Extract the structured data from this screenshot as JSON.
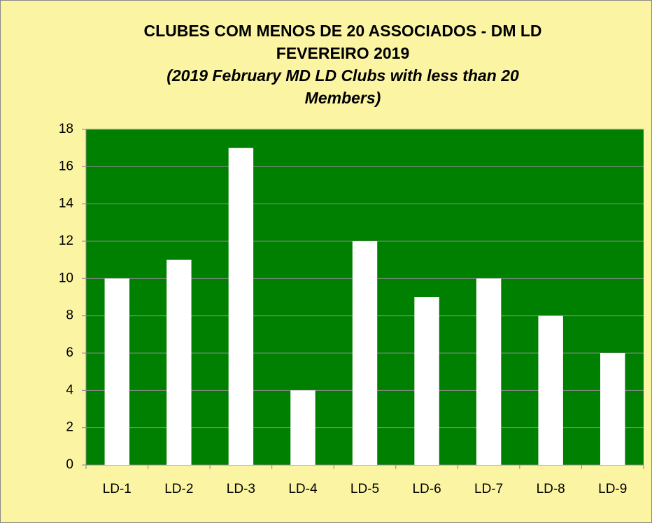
{
  "chart_data": {
    "type": "bar",
    "title": [
      "CLUBES COM MENOS DE 20 ASSOCIADOS - DM LD",
      "FEVEREIRO 2019"
    ],
    "subtitle": [
      "(2019 February  MD LD  Clubs with less than 20",
      "Members)"
    ],
    "categories": [
      "LD-1",
      "LD-2",
      "LD-3",
      "LD-4",
      "LD-5",
      "LD-6",
      "LD-7",
      "LD-8",
      "LD-9"
    ],
    "values": [
      10,
      11,
      17,
      4,
      12,
      9,
      10,
      8,
      6
    ],
    "color": "#ffffff",
    "plot_color": "#008000",
    "background": "#fbf5a3",
    "ylim": [
      0,
      18
    ],
    "yticks": [
      0,
      2,
      4,
      6,
      8,
      10,
      12,
      14,
      16,
      18
    ],
    "grid": true
  }
}
